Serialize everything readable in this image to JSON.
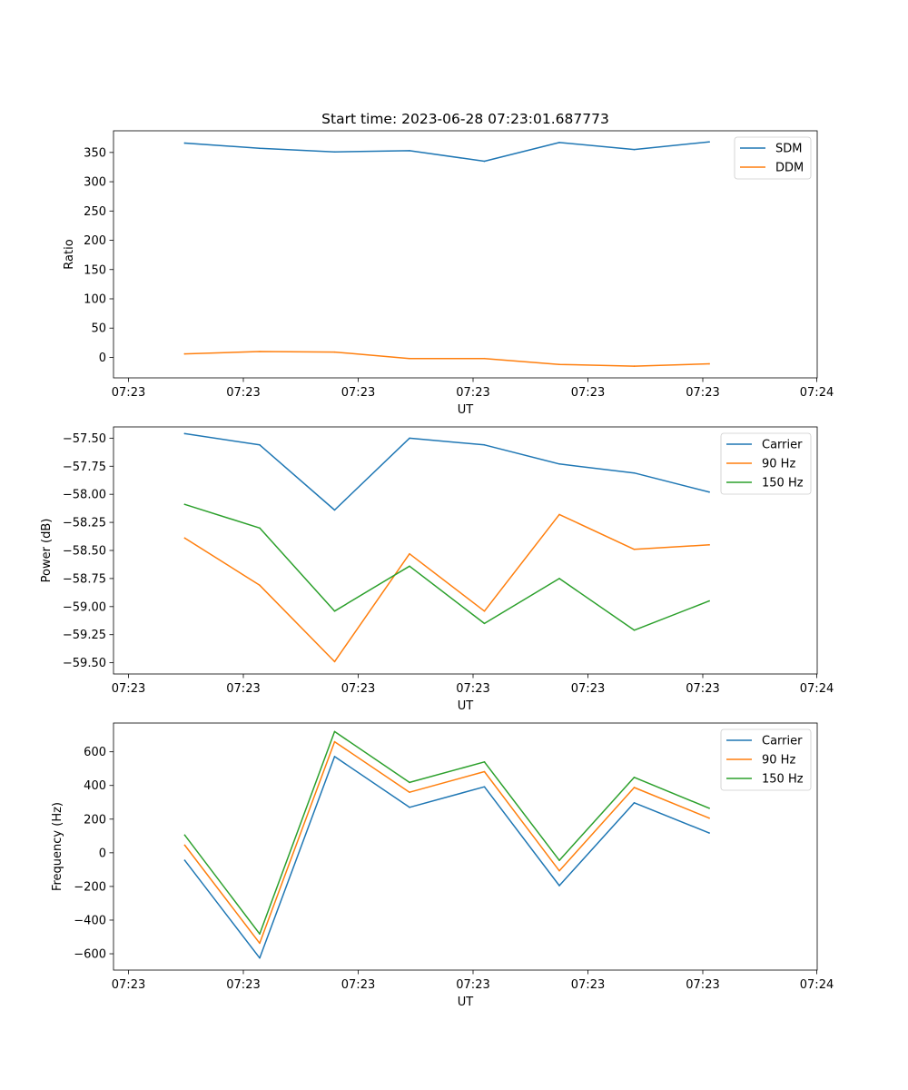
{
  "figure": {
    "title": "Start time: 2023-06-28 07:23:01.687773",
    "xlabel": "UT",
    "xtick_labels": [
      "07:23",
      "07:23",
      "07:23",
      "07:23",
      "07:23",
      "07:23",
      "07:24"
    ]
  },
  "chart_data": [
    {
      "type": "line",
      "title": "Start time: 2023-06-28 07:23:01.687773",
      "xlabel": "UT",
      "ylabel": "Ratio",
      "ylim": [
        -35,
        387
      ],
      "yticks": [
        0,
        50,
        100,
        150,
        200,
        250,
        300,
        350
      ],
      "ytick_labels": [
        "0",
        "50",
        "100",
        "150",
        "200",
        "250",
        "300",
        "350"
      ],
      "grid": false,
      "legend": "top-right",
      "series": [
        {
          "name": "SDM",
          "color": "#1f77b4",
          "values": [
            366,
            357,
            351,
            353,
            335,
            367,
            355,
            368
          ]
        },
        {
          "name": "DDM",
          "color": "#ff7f0e",
          "values": [
            6,
            10,
            9,
            -2,
            -2,
            -12,
            -15,
            -11
          ]
        }
      ]
    },
    {
      "type": "line",
      "title": "",
      "xlabel": "UT",
      "ylabel": "Power (dB)",
      "ylim": [
        -59.6,
        -57.4
      ],
      "yticks": [
        -57.5,
        -57.75,
        -58.0,
        -58.25,
        -58.5,
        -58.75,
        -59.0,
        -59.25,
        -59.5
      ],
      "ytick_labels": [
        "−57.50",
        "−57.75",
        "−58.00",
        "−58.25",
        "−58.50",
        "−58.75",
        "−59.00",
        "−59.25",
        "−59.50"
      ],
      "grid": false,
      "legend": "top-right",
      "series": [
        {
          "name": "Carrier",
          "color": "#1f77b4",
          "values": [
            -57.46,
            -57.56,
            -58.14,
            -57.5,
            -57.56,
            -57.73,
            -57.81,
            -57.98
          ]
        },
        {
          "name": "90 Hz",
          "color": "#ff7f0e",
          "values": [
            -58.39,
            -58.81,
            -59.49,
            -58.53,
            -59.04,
            -58.18,
            -58.49,
            -58.45
          ]
        },
        {
          "name": "150 Hz",
          "color": "#2ca02c",
          "values": [
            -58.09,
            -58.3,
            -59.04,
            -58.64,
            -59.15,
            -58.75,
            -59.21,
            -58.95
          ]
        }
      ]
    },
    {
      "type": "line",
      "title": "",
      "xlabel": "UT",
      "ylabel": "Frequency (Hz)",
      "ylim": [
        -697,
        771
      ],
      "yticks": [
        -600,
        -400,
        -200,
        0,
        200,
        400,
        600
      ],
      "ytick_labels": [
        "−600",
        "−400",
        "−200",
        "0",
        "200",
        "400",
        "600"
      ],
      "grid": false,
      "legend": "top-right",
      "series": [
        {
          "name": "Carrier",
          "color": "#1f77b4",
          "values": [
            -45,
            -625,
            572,
            270,
            392,
            -195,
            297,
            118
          ]
        },
        {
          "name": "90 Hz",
          "color": "#ff7f0e",
          "values": [
            45,
            -537,
            660,
            360,
            482,
            -107,
            388,
            206
          ]
        },
        {
          "name": "150 Hz",
          "color": "#2ca02c",
          "values": [
            105,
            -482,
            720,
            418,
            540,
            -45,
            448,
            265
          ]
        }
      ]
    }
  ]
}
